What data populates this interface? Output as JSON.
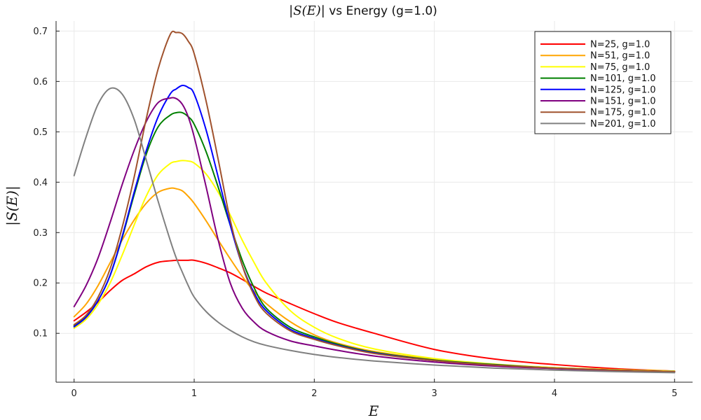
{
  "chart_data": {
    "type": "line",
    "title_math": "|S(E)|",
    "title_text": " vs Energy (g=1.0)",
    "xlabel": "E",
    "ylabel": "|S(E)|",
    "xlim": [
      -0.15,
      5.15
    ],
    "ylim": [
      0.003,
      0.72
    ],
    "xticks": [
      0,
      1,
      2,
      3,
      4,
      5
    ],
    "xtick_labels": [
      "0",
      "1",
      "2",
      "3",
      "4",
      "5"
    ],
    "yticks": [
      0.1,
      0.2,
      0.3,
      0.4,
      0.5,
      0.6,
      0.7
    ],
    "ytick_labels": [
      "0.1",
      "0.2",
      "0.3",
      "0.4",
      "0.5",
      "0.6",
      "0.7"
    ],
    "grid": true,
    "legend_position": "top-right",
    "x": [
      0,
      0.1,
      0.2,
      0.3,
      0.4,
      0.5,
      0.6,
      0.7,
      0.8,
      0.85,
      0.9,
      0.95,
      1.0,
      1.1,
      1.2,
      1.3,
      1.4,
      1.5,
      1.6,
      1.8,
      2.0,
      2.2,
      2.5,
      3.0,
      3.5,
      4.0,
      4.5,
      5.0
    ],
    "series": [
      {
        "name": "N=25, g=1.0",
        "color": "#ff0000",
        "values": [
          0.125,
          0.142,
          0.162,
          0.185,
          0.205,
          0.218,
          0.232,
          0.241,
          0.244,
          0.245,
          0.245,
          0.245,
          0.245,
          0.239,
          0.23,
          0.22,
          0.207,
          0.193,
          0.18,
          0.159,
          0.139,
          0.121,
          0.1,
          0.068,
          0.049,
          0.038,
          0.03,
          0.025
        ]
      },
      {
        "name": "N=51, g=1.0",
        "color": "#ffa500",
        "values": [
          0.133,
          0.158,
          0.195,
          0.24,
          0.285,
          0.325,
          0.358,
          0.38,
          0.388,
          0.387,
          0.383,
          0.372,
          0.358,
          0.323,
          0.285,
          0.248,
          0.213,
          0.183,
          0.159,
          0.123,
          0.097,
          0.08,
          0.064,
          0.048,
          0.038,
          0.031,
          0.027,
          0.024
        ]
      },
      {
        "name": "N=75, g=1.0",
        "color": "#ffff00",
        "values": [
          0.11,
          0.128,
          0.158,
          0.2,
          0.255,
          0.315,
          0.372,
          0.415,
          0.437,
          0.441,
          0.443,
          0.442,
          0.438,
          0.416,
          0.38,
          0.335,
          0.285,
          0.24,
          0.2,
          0.145,
          0.112,
          0.09,
          0.069,
          0.05,
          0.039,
          0.032,
          0.028,
          0.025
        ]
      },
      {
        "name": "N=101, g=1.0",
        "color": "#008000",
        "values": [
          0.115,
          0.133,
          0.165,
          0.215,
          0.29,
          0.375,
          0.455,
          0.51,
          0.533,
          0.538,
          0.538,
          0.53,
          0.515,
          0.46,
          0.39,
          0.315,
          0.245,
          0.19,
          0.15,
          0.112,
          0.093,
          0.078,
          0.062,
          0.047,
          0.038,
          0.031,
          0.027,
          0.024
        ]
      },
      {
        "name": "N=125, g=1.0",
        "color": "#0000ff",
        "values": [
          0.113,
          0.132,
          0.165,
          0.215,
          0.292,
          0.38,
          0.462,
          0.53,
          0.575,
          0.585,
          0.592,
          0.588,
          0.575,
          0.503,
          0.41,
          0.315,
          0.235,
          0.18,
          0.145,
          0.108,
          0.09,
          0.076,
          0.061,
          0.046,
          0.037,
          0.031,
          0.027,
          0.024
        ]
      },
      {
        "name": "N=151, g=1.0",
        "color": "#800080",
        "values": [
          0.153,
          0.195,
          0.25,
          0.32,
          0.395,
          0.463,
          0.52,
          0.558,
          0.567,
          0.566,
          0.555,
          0.53,
          0.49,
          0.39,
          0.285,
          0.2,
          0.15,
          0.122,
          0.104,
          0.085,
          0.075,
          0.066,
          0.055,
          0.043,
          0.035,
          0.03,
          0.026,
          0.023
        ]
      },
      {
        "name": "N=175, g=1.0",
        "color": "#a0522d",
        "values": [
          0.117,
          0.136,
          0.172,
          0.228,
          0.31,
          0.41,
          0.525,
          0.625,
          0.693,
          0.697,
          0.695,
          0.68,
          0.655,
          0.56,
          0.445,
          0.325,
          0.235,
          0.175,
          0.14,
          0.105,
          0.088,
          0.075,
          0.06,
          0.046,
          0.037,
          0.031,
          0.027,
          0.024
        ]
      },
      {
        "name": "N=201, g=1.0",
        "color": "#808080",
        "values": [
          0.413,
          0.49,
          0.555,
          0.586,
          0.575,
          0.525,
          0.445,
          0.362,
          0.285,
          0.25,
          0.222,
          0.195,
          0.172,
          0.143,
          0.122,
          0.106,
          0.093,
          0.083,
          0.076,
          0.066,
          0.058,
          0.052,
          0.045,
          0.037,
          0.031,
          0.027,
          0.024,
          0.022
        ]
      }
    ]
  }
}
